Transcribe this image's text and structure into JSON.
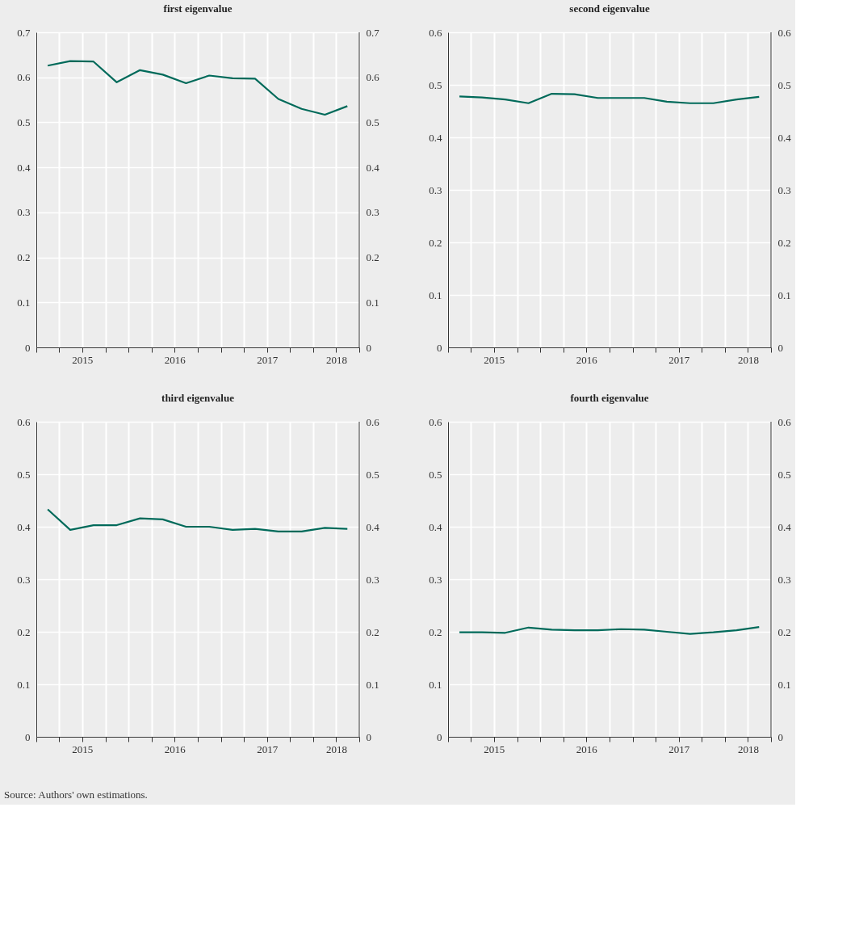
{
  "chart_data": [
    {
      "type": "line",
      "title": "first eigenvalue",
      "x": [
        "2015-02-15",
        "2015-05-15",
        "2015-08-15",
        "2015-11-15",
        "2016-02-15",
        "2016-05-15",
        "2016-08-15",
        "2016-11-15",
        "2017-02-15",
        "2017-05-15",
        "2017-08-15",
        "2017-11-15",
        "2018-02-15",
        "2018-05-15"
      ],
      "series": [
        {
          "color": "#006a5a",
          "values": [
            0.626,
            0.636,
            0.635,
            0.589,
            0.616,
            0.606,
            0.587,
            0.604,
            0.598,
            0.597,
            0.552,
            0.53,
            0.517,
            0.536
          ]
        }
      ],
      "xlim": [
        "2015-01-01",
        "2018-07-01"
      ],
      "xticks": [
        {
          "value": "2015-01-01",
          "label": null
        },
        {
          "value": "2015-04-01",
          "label": null
        },
        {
          "value": "2015-07-01",
          "label": "2015"
        },
        {
          "value": "2015-10-01",
          "label": null
        },
        {
          "value": "2016-01-01",
          "label": null
        },
        {
          "value": "2016-04-01",
          "label": null
        },
        {
          "value": "2016-07-01",
          "label": "2016"
        },
        {
          "value": "2016-10-01",
          "label": null
        },
        {
          "value": "2017-01-01",
          "label": null
        },
        {
          "value": "2017-04-01",
          "label": null
        },
        {
          "value": "2017-07-01",
          "label": "2017"
        },
        {
          "value": "2017-10-01",
          "label": null
        },
        {
          "value": "2018-01-01",
          "label": null
        },
        {
          "value": "2018-04-01",
          "label": "2018"
        },
        {
          "value": "2018-07-01",
          "label": null
        }
      ],
      "ylim": [
        0,
        0.7
      ],
      "yticks": [
        0,
        0.1,
        0.2,
        0.3,
        0.4,
        0.5,
        0.6,
        0.7
      ],
      "y2lim": [
        0,
        0.7
      ],
      "y2ticks": [
        0,
        0.1,
        0.2,
        0.3,
        0.4,
        0.5,
        0.6,
        0.7
      ],
      "grid": true
    },
    {
      "type": "line",
      "title": "second eigenvalue",
      "x": [
        "2015-02-15",
        "2015-05-15",
        "2015-08-15",
        "2015-11-15",
        "2016-02-15",
        "2016-05-15",
        "2016-08-15",
        "2016-11-15",
        "2017-02-15",
        "2017-05-15",
        "2017-08-15",
        "2017-11-15",
        "2018-02-15",
        "2018-05-15"
      ],
      "series": [
        {
          "color": "#006a5a",
          "values": [
            0.478,
            0.476,
            0.472,
            0.465,
            0.483,
            0.482,
            0.475,
            0.475,
            0.475,
            0.468,
            0.465,
            0.465,
            0.472,
            0.477
          ]
        }
      ],
      "xlim": [
        "2015-01-01",
        "2018-07-01"
      ],
      "xticks": [
        {
          "value": "2015-01-01",
          "label": null
        },
        {
          "value": "2015-04-01",
          "label": null
        },
        {
          "value": "2015-07-01",
          "label": "2015"
        },
        {
          "value": "2015-10-01",
          "label": null
        },
        {
          "value": "2016-01-01",
          "label": null
        },
        {
          "value": "2016-04-01",
          "label": null
        },
        {
          "value": "2016-07-01",
          "label": "2016"
        },
        {
          "value": "2016-10-01",
          "label": null
        },
        {
          "value": "2017-01-01",
          "label": null
        },
        {
          "value": "2017-04-01",
          "label": null
        },
        {
          "value": "2017-07-01",
          "label": "2017"
        },
        {
          "value": "2017-10-01",
          "label": null
        },
        {
          "value": "2018-01-01",
          "label": null
        },
        {
          "value": "2018-04-01",
          "label": "2018"
        },
        {
          "value": "2018-07-01",
          "label": null
        }
      ],
      "ylim": [
        0,
        0.6
      ],
      "yticks": [
        0,
        0.1,
        0.2,
        0.3,
        0.4,
        0.5,
        0.6
      ],
      "y2lim": [
        0,
        0.6
      ],
      "y2ticks": [
        0,
        0.1,
        0.2,
        0.3,
        0.4,
        0.5,
        0.6
      ],
      "grid": true
    },
    {
      "type": "line",
      "title": "third eigenvalue",
      "x": [
        "2015-02-15",
        "2015-05-15",
        "2015-08-15",
        "2015-11-15",
        "2016-02-15",
        "2016-05-15",
        "2016-08-15",
        "2016-11-15",
        "2017-02-15",
        "2017-05-15",
        "2017-08-15",
        "2017-11-15",
        "2018-02-15",
        "2018-05-15"
      ],
      "series": [
        {
          "color": "#006a5a",
          "values": [
            0.433,
            0.394,
            0.403,
            0.403,
            0.416,
            0.414,
            0.4,
            0.4,
            0.394,
            0.396,
            0.391,
            0.391,
            0.398,
            0.396
          ]
        }
      ],
      "xlim": [
        "2015-01-01",
        "2018-07-01"
      ],
      "xticks": [
        {
          "value": "2015-01-01",
          "label": null
        },
        {
          "value": "2015-04-01",
          "label": null
        },
        {
          "value": "2015-07-01",
          "label": "2015"
        },
        {
          "value": "2015-10-01",
          "label": null
        },
        {
          "value": "2016-01-01",
          "label": null
        },
        {
          "value": "2016-04-01",
          "label": null
        },
        {
          "value": "2016-07-01",
          "label": "2016"
        },
        {
          "value": "2016-10-01",
          "label": null
        },
        {
          "value": "2017-01-01",
          "label": null
        },
        {
          "value": "2017-04-01",
          "label": null
        },
        {
          "value": "2017-07-01",
          "label": "2017"
        },
        {
          "value": "2017-10-01",
          "label": null
        },
        {
          "value": "2018-01-01",
          "label": null
        },
        {
          "value": "2018-04-01",
          "label": "2018"
        },
        {
          "value": "2018-07-01",
          "label": null
        }
      ],
      "ylim": [
        0,
        0.6
      ],
      "yticks": [
        0,
        0.1,
        0.2,
        0.3,
        0.4,
        0.5,
        0.6
      ],
      "y2lim": [
        0,
        0.6
      ],
      "y2ticks": [
        0,
        0.1,
        0.2,
        0.3,
        0.4,
        0.5,
        0.6
      ],
      "grid": true,
      "annotations": [
        "Source: Authors' own estimations."
      ]
    },
    {
      "type": "line",
      "title": "fourth eigenvalue",
      "x": [
        "2015-02-15",
        "2015-05-15",
        "2015-08-15",
        "2015-11-15",
        "2016-02-15",
        "2016-05-15",
        "2016-08-15",
        "2016-11-15",
        "2017-02-15",
        "2017-05-15",
        "2017-08-15",
        "2017-11-15",
        "2018-02-15",
        "2018-05-15"
      ],
      "series": [
        {
          "color": "#006a5a",
          "values": [
            0.199,
            0.199,
            0.198,
            0.208,
            0.204,
            0.203,
            0.203,
            0.205,
            0.204,
            0.2,
            0.196,
            0.199,
            0.203,
            0.209
          ]
        }
      ],
      "xlim": [
        "2015-01-01",
        "2018-07-01"
      ],
      "xticks": [
        {
          "value": "2015-01-01",
          "label": null
        },
        {
          "value": "2015-04-01",
          "label": null
        },
        {
          "value": "2015-07-01",
          "label": "2015"
        },
        {
          "value": "2015-10-01",
          "label": null
        },
        {
          "value": "2016-01-01",
          "label": null
        },
        {
          "value": "2016-04-01",
          "label": null
        },
        {
          "value": "2016-07-01",
          "label": "2016"
        },
        {
          "value": "2016-10-01",
          "label": null
        },
        {
          "value": "2017-01-01",
          "label": null
        },
        {
          "value": "2017-04-01",
          "label": null
        },
        {
          "value": "2017-07-01",
          "label": "2017"
        },
        {
          "value": "2017-10-01",
          "label": null
        },
        {
          "value": "2018-01-01",
          "label": null
        },
        {
          "value": "2018-04-01",
          "label": "2018"
        },
        {
          "value": "2018-07-01",
          "label": null
        }
      ],
      "ylim": [
        0,
        0.6
      ],
      "yticks": [
        0,
        0.1,
        0.2,
        0.3,
        0.4,
        0.5,
        0.6
      ],
      "y2lim": [
        0,
        0.6
      ],
      "y2ticks": [
        0,
        0.1,
        0.2,
        0.3,
        0.4,
        0.5,
        0.6
      ],
      "grid": true
    }
  ]
}
